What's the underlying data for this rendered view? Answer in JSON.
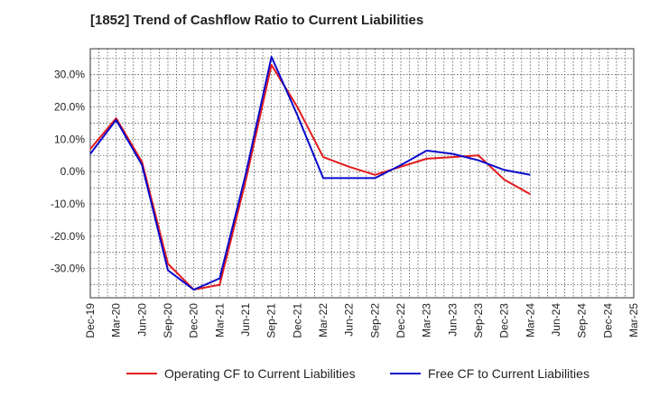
{
  "chart_data": {
    "type": "line",
    "title": "[1852]  Trend of Cashflow Ratio to Current Liabilities",
    "xlabel": "",
    "ylabel": "",
    "categories": [
      "Dec-19",
      "Mar-20",
      "Jun-20",
      "Sep-20",
      "Dec-20",
      "Mar-21",
      "Jun-21",
      "Sep-21",
      "Dec-21",
      "Mar-22",
      "Jun-22",
      "Sep-22",
      "Dec-22",
      "Mar-23",
      "Jun-23",
      "Sep-23",
      "Dec-23",
      "Mar-24",
      "Jun-24",
      "Sep-24",
      "Dec-24",
      "Mar-25"
    ],
    "y_ticks": [
      30,
      20,
      10,
      0,
      -10,
      -20,
      -30
    ],
    "y_tick_labels": [
      "30.0%",
      "20.0%",
      "10.0%",
      "0.0%",
      "-10.0%",
      "-20.0%",
      "-30.0%"
    ],
    "ylim": [
      -39,
      38
    ],
    "grid": true,
    "legend_position": "bottom",
    "series": [
      {
        "name": "Operating CF to Current Liabilities",
        "color": "#e41a1c",
        "values": [
          7.0,
          16.5,
          3.0,
          -28.5,
          -36.5,
          -35.0,
          -3.0,
          33.0,
          20.0,
          4.5,
          1.5,
          -1.0,
          1.5,
          4.0,
          4.5,
          5.0,
          -2.5,
          -7.0,
          null,
          null,
          null,
          null
        ]
      },
      {
        "name": "Free CF to Current Liabilities",
        "color": "#0a0acd",
        "values": [
          5.5,
          16.0,
          2.0,
          -30.5,
          -36.5,
          -33.0,
          -1.0,
          35.5,
          17.5,
          -2.0,
          -2.0,
          -2.0,
          2.0,
          6.5,
          5.5,
          3.5,
          0.5,
          -1.0,
          null,
          null,
          null,
          null
        ]
      }
    ]
  }
}
